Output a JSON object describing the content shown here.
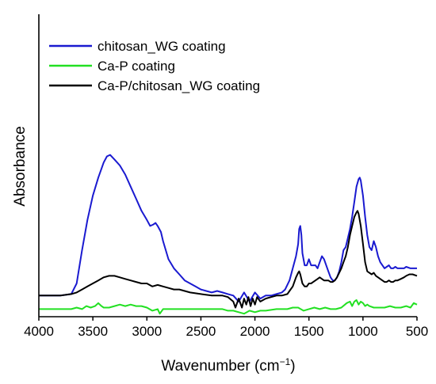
{
  "chart_data": {
    "type": "line",
    "xlabel": "Wavenumber (cm",
    "xlabel_sup": "−1",
    "xlabel_end": ")",
    "ylabel": "Absorbance",
    "xlim": [
      4000,
      500
    ],
    "x_reversed": true,
    "ylim": [
      0,
      1.0
    ],
    "xticks": [
      4000,
      3500,
      3000,
      2500,
      2000,
      1500,
      1000,
      500
    ],
    "grid": false,
    "legend_position": "top-left",
    "series": [
      {
        "name": "chitosan_WG coating",
        "color": "#1a1ad0",
        "points": [
          [
            4000,
            0.07
          ],
          [
            3900,
            0.07
          ],
          [
            3800,
            0.07
          ],
          [
            3700,
            0.075
          ],
          [
            3650,
            0.11
          ],
          [
            3600,
            0.22
          ],
          [
            3550,
            0.32
          ],
          [
            3500,
            0.4
          ],
          [
            3450,
            0.46
          ],
          [
            3400,
            0.51
          ],
          [
            3370,
            0.53
          ],
          [
            3340,
            0.535
          ],
          [
            3300,
            0.52
          ],
          [
            3250,
            0.5
          ],
          [
            3200,
            0.47
          ],
          [
            3150,
            0.43
          ],
          [
            3100,
            0.39
          ],
          [
            3050,
            0.35
          ],
          [
            3000,
            0.32
          ],
          [
            2970,
            0.3
          ],
          [
            2940,
            0.305
          ],
          [
            2920,
            0.31
          ],
          [
            2900,
            0.3
          ],
          [
            2870,
            0.28
          ],
          [
            2850,
            0.25
          ],
          [
            2800,
            0.19
          ],
          [
            2750,
            0.16
          ],
          [
            2700,
            0.14
          ],
          [
            2650,
            0.12
          ],
          [
            2600,
            0.11
          ],
          [
            2550,
            0.1
          ],
          [
            2500,
            0.09
          ],
          [
            2450,
            0.085
          ],
          [
            2400,
            0.08
          ],
          [
            2350,
            0.085
          ],
          [
            2300,
            0.08
          ],
          [
            2250,
            0.075
          ],
          [
            2200,
            0.07
          ],
          [
            2150,
            0.05
          ],
          [
            2100,
            0.08
          ],
          [
            2050,
            0.05
          ],
          [
            2000,
            0.08
          ],
          [
            1950,
            0.06
          ],
          [
            1900,
            0.07
          ],
          [
            1850,
            0.07
          ],
          [
            1800,
            0.075
          ],
          [
            1750,
            0.08
          ],
          [
            1720,
            0.09
          ],
          [
            1680,
            0.12
          ],
          [
            1650,
            0.16
          ],
          [
            1620,
            0.2
          ],
          [
            1600,
            0.24
          ],
          [
            1590,
            0.29
          ],
          [
            1580,
            0.3
          ],
          [
            1570,
            0.27
          ],
          [
            1560,
            0.21
          ],
          [
            1540,
            0.17
          ],
          [
            1520,
            0.17
          ],
          [
            1500,
            0.19
          ],
          [
            1480,
            0.17
          ],
          [
            1460,
            0.17
          ],
          [
            1440,
            0.17
          ],
          [
            1420,
            0.16
          ],
          [
            1400,
            0.18
          ],
          [
            1380,
            0.2
          ],
          [
            1360,
            0.19
          ],
          [
            1340,
            0.17
          ],
          [
            1320,
            0.15
          ],
          [
            1300,
            0.13
          ],
          [
            1280,
            0.12
          ],
          [
            1260,
            0.12
          ],
          [
            1240,
            0.13
          ],
          [
            1220,
            0.15
          ],
          [
            1200,
            0.18
          ],
          [
            1180,
            0.22
          ],
          [
            1160,
            0.23
          ],
          [
            1140,
            0.26
          ],
          [
            1120,
            0.29
          ],
          [
            1100,
            0.33
          ],
          [
            1080,
            0.38
          ],
          [
            1060,
            0.43
          ],
          [
            1040,
            0.455
          ],
          [
            1030,
            0.46
          ],
          [
            1020,
            0.45
          ],
          [
            1000,
            0.4
          ],
          [
            980,
            0.33
          ],
          [
            960,
            0.27
          ],
          [
            940,
            0.23
          ],
          [
            920,
            0.22
          ],
          [
            900,
            0.25
          ],
          [
            880,
            0.23
          ],
          [
            860,
            0.2
          ],
          [
            840,
            0.18
          ],
          [
            820,
            0.17
          ],
          [
            800,
            0.16
          ],
          [
            780,
            0.165
          ],
          [
            760,
            0.17
          ],
          [
            740,
            0.16
          ],
          [
            720,
            0.16
          ],
          [
            700,
            0.165
          ],
          [
            680,
            0.16
          ],
          [
            650,
            0.16
          ],
          [
            620,
            0.16
          ],
          [
            600,
            0.165
          ],
          [
            560,
            0.16
          ],
          [
            520,
            0.16
          ],
          [
            500,
            0.16
          ]
        ]
      },
      {
        "name": "Ca-P coating",
        "color": "#22e022",
        "points": [
          [
            4000,
            0.025
          ],
          [
            3900,
            0.025
          ],
          [
            3800,
            0.025
          ],
          [
            3700,
            0.025
          ],
          [
            3650,
            0.03
          ],
          [
            3600,
            0.025
          ],
          [
            3560,
            0.035
          ],
          [
            3520,
            0.03
          ],
          [
            3480,
            0.035
          ],
          [
            3450,
            0.045
          ],
          [
            3420,
            0.035
          ],
          [
            3400,
            0.03
          ],
          [
            3350,
            0.03
          ],
          [
            3300,
            0.035
          ],
          [
            3250,
            0.04
          ],
          [
            3200,
            0.035
          ],
          [
            3150,
            0.04
          ],
          [
            3100,
            0.035
          ],
          [
            3050,
            0.035
          ],
          [
            3000,
            0.03
          ],
          [
            2950,
            0.02
          ],
          [
            2900,
            0.025
          ],
          [
            2880,
            0.01
          ],
          [
            2850,
            0.025
          ],
          [
            2800,
            0.025
          ],
          [
            2700,
            0.025
          ],
          [
            2600,
            0.025
          ],
          [
            2500,
            0.025
          ],
          [
            2400,
            0.025
          ],
          [
            2300,
            0.025
          ],
          [
            2250,
            0.02
          ],
          [
            2200,
            0.02
          ],
          [
            2150,
            0.015
          ],
          [
            2100,
            0.01
          ],
          [
            2050,
            0.02
          ],
          [
            2000,
            0.015
          ],
          [
            1950,
            0.02
          ],
          [
            1900,
            0.02
          ],
          [
            1800,
            0.025
          ],
          [
            1700,
            0.025
          ],
          [
            1650,
            0.03
          ],
          [
            1600,
            0.03
          ],
          [
            1550,
            0.02
          ],
          [
            1500,
            0.025
          ],
          [
            1450,
            0.03
          ],
          [
            1400,
            0.025
          ],
          [
            1350,
            0.03
          ],
          [
            1300,
            0.025
          ],
          [
            1250,
            0.025
          ],
          [
            1200,
            0.03
          ],
          [
            1150,
            0.045
          ],
          [
            1120,
            0.05
          ],
          [
            1100,
            0.035
          ],
          [
            1080,
            0.05
          ],
          [
            1060,
            0.055
          ],
          [
            1040,
            0.04
          ],
          [
            1020,
            0.05
          ],
          [
            1000,
            0.045
          ],
          [
            980,
            0.035
          ],
          [
            960,
            0.04
          ],
          [
            940,
            0.035
          ],
          [
            900,
            0.03
          ],
          [
            850,
            0.03
          ],
          [
            800,
            0.03
          ],
          [
            750,
            0.035
          ],
          [
            700,
            0.03
          ],
          [
            650,
            0.03
          ],
          [
            600,
            0.035
          ],
          [
            560,
            0.03
          ],
          [
            530,
            0.045
          ],
          [
            500,
            0.04
          ]
        ]
      },
      {
        "name": "Ca-P/chitosan_WG coating",
        "color": "#000000",
        "points": [
          [
            4000,
            0.07
          ],
          [
            3900,
            0.07
          ],
          [
            3800,
            0.07
          ],
          [
            3700,
            0.075
          ],
          [
            3650,
            0.08
          ],
          [
            3600,
            0.09
          ],
          [
            3550,
            0.1
          ],
          [
            3500,
            0.11
          ],
          [
            3450,
            0.12
          ],
          [
            3400,
            0.13
          ],
          [
            3350,
            0.135
          ],
          [
            3300,
            0.135
          ],
          [
            3250,
            0.13
          ],
          [
            3200,
            0.125
          ],
          [
            3150,
            0.12
          ],
          [
            3100,
            0.115
          ],
          [
            3050,
            0.11
          ],
          [
            3000,
            0.11
          ],
          [
            2950,
            0.1
          ],
          [
            2900,
            0.105
          ],
          [
            2850,
            0.1
          ],
          [
            2800,
            0.095
          ],
          [
            2750,
            0.09
          ],
          [
            2700,
            0.09
          ],
          [
            2650,
            0.085
          ],
          [
            2600,
            0.08
          ],
          [
            2500,
            0.075
          ],
          [
            2400,
            0.07
          ],
          [
            2300,
            0.07
          ],
          [
            2250,
            0.065
          ],
          [
            2200,
            0.05
          ],
          [
            2180,
            0.03
          ],
          [
            2150,
            0.06
          ],
          [
            2120,
            0.03
          ],
          [
            2100,
            0.06
          ],
          [
            2080,
            0.04
          ],
          [
            2060,
            0.065
          ],
          [
            2040,
            0.035
          ],
          [
            2020,
            0.06
          ],
          [
            2000,
            0.04
          ],
          [
            1980,
            0.065
          ],
          [
            1950,
            0.05
          ],
          [
            1900,
            0.06
          ],
          [
            1850,
            0.065
          ],
          [
            1800,
            0.07
          ],
          [
            1750,
            0.07
          ],
          [
            1700,
            0.075
          ],
          [
            1680,
            0.085
          ],
          [
            1650,
            0.1
          ],
          [
            1620,
            0.13
          ],
          [
            1600,
            0.145
          ],
          [
            1590,
            0.15
          ],
          [
            1580,
            0.14
          ],
          [
            1560,
            0.11
          ],
          [
            1540,
            0.1
          ],
          [
            1520,
            0.1
          ],
          [
            1500,
            0.11
          ],
          [
            1480,
            0.11
          ],
          [
            1460,
            0.115
          ],
          [
            1440,
            0.12
          ],
          [
            1420,
            0.125
          ],
          [
            1400,
            0.13
          ],
          [
            1380,
            0.125
          ],
          [
            1360,
            0.12
          ],
          [
            1340,
            0.12
          ],
          [
            1320,
            0.12
          ],
          [
            1300,
            0.115
          ],
          [
            1280,
            0.115
          ],
          [
            1260,
            0.12
          ],
          [
            1240,
            0.13
          ],
          [
            1220,
            0.145
          ],
          [
            1200,
            0.16
          ],
          [
            1180,
            0.18
          ],
          [
            1160,
            0.2
          ],
          [
            1140,
            0.23
          ],
          [
            1120,
            0.27
          ],
          [
            1100,
            0.3
          ],
          [
            1080,
            0.33
          ],
          [
            1060,
            0.345
          ],
          [
            1050,
            0.35
          ],
          [
            1040,
            0.34
          ],
          [
            1020,
            0.3
          ],
          [
            1000,
            0.24
          ],
          [
            980,
            0.18
          ],
          [
            960,
            0.15
          ],
          [
            940,
            0.145
          ],
          [
            920,
            0.14
          ],
          [
            900,
            0.145
          ],
          [
            880,
            0.135
          ],
          [
            860,
            0.13
          ],
          [
            840,
            0.125
          ],
          [
            820,
            0.12
          ],
          [
            800,
            0.115
          ],
          [
            780,
            0.115
          ],
          [
            760,
            0.12
          ],
          [
            740,
            0.115
          ],
          [
            720,
            0.115
          ],
          [
            700,
            0.12
          ],
          [
            680,
            0.12
          ],
          [
            650,
            0.125
          ],
          [
            620,
            0.13
          ],
          [
            600,
            0.135
          ],
          [
            570,
            0.14
          ],
          [
            540,
            0.14
          ],
          [
            500,
            0.135
          ]
        ]
      }
    ]
  }
}
